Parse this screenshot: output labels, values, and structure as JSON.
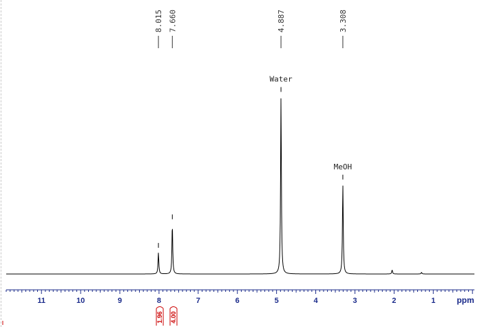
{
  "chart_data": {
    "type": "line",
    "xlabel": "ppm",
    "xlim": [
      11.9,
      -0.05
    ],
    "reversed_x": true,
    "ticks": [
      11,
      10,
      9,
      8,
      7,
      6,
      5,
      4,
      3,
      2,
      1
    ],
    "peak_picks": [
      "8.015",
      "7.660",
      "4.887",
      "3.308"
    ],
    "annotations": [
      {
        "text": "Water",
        "ppm": 4.887
      },
      {
        "text": "MeOH",
        "ppm": 3.308
      }
    ],
    "integrals": [
      {
        "ppm": 7.98,
        "value": "1.96"
      },
      {
        "ppm": 7.63,
        "value": "4.00"
      }
    ],
    "peaks": [
      {
        "ppm": 8.015,
        "height": 0.105
      },
      {
        "ppm": 7.66,
        "height": 0.245
      },
      {
        "ppm": 4.887,
        "height": 0.87
      },
      {
        "ppm": 3.308,
        "height": 0.44
      },
      {
        "ppm": 2.05,
        "height": 0.02
      },
      {
        "ppm": 1.3,
        "height": 0.008
      }
    ],
    "colors": {
      "spectrum": "#000000",
      "axis": "#1a2a8a",
      "integral": "#cc0000",
      "peak_label": "#333333"
    }
  }
}
